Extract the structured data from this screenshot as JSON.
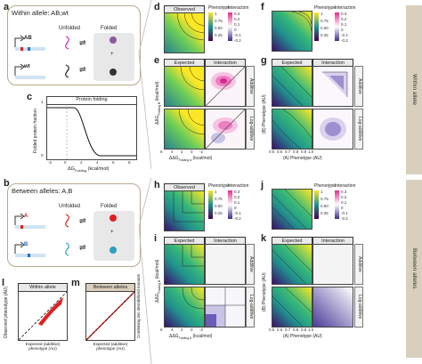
{
  "panel_letters": {
    "a": "a",
    "b": "b",
    "c": "c",
    "d": "d",
    "e": "e",
    "f": "f",
    "g": "g",
    "h": "h",
    "i": "i",
    "j": "j",
    "k": "k",
    "l": "l",
    "m": "m"
  },
  "panel_a": {
    "title": "Within allele: AB,wt",
    "col_unfolded": "Unfolded",
    "col_folded": "Folded",
    "ab": "AB",
    "wt": "wt",
    "plus": "+"
  },
  "panel_b": {
    "title": "Between alleles: A,B",
    "col_unfolded": "Unfolded",
    "col_folded": "Folded",
    "a": "A",
    "b": "B",
    "plus": "+"
  },
  "panel_c": {
    "title": "Protein folding",
    "ylabel": "Folded protein fraction",
    "xlabel": "ΔG",
    "xlabel_sub": "Folding",
    "xlabel_unit": " (kcal/mol)",
    "xticks": [
      "-2",
      "0",
      "2",
      "4",
      "6",
      "8"
    ],
    "yticks": [
      "0",
      "1"
    ]
  },
  "headers": {
    "observed": "Observed",
    "expected": "Expected",
    "interaction": "Interaction",
    "additive": "Additive",
    "log_additive": "Log-additive",
    "phenotype": "Phenotype",
    "interaction_legend": "Interaction"
  },
  "legend_d": {
    "pheno_ticks": [
      "1",
      "0.75",
      "0.50",
      "0.25"
    ],
    "inter_ticks": [
      "0.3",
      "0.2",
      "0.1",
      "0",
      "-0.1",
      "-0.2"
    ]
  },
  "legend_f": {
    "pheno_ticks": [
      "1",
      "0.75",
      "0.50",
      "0.25"
    ],
    "inter_ticks": [
      "0.3",
      "0.2",
      "0.1",
      "0",
      "-0.1",
      "-0.2"
    ]
  },
  "legend_h": {
    "pheno_ticks": [
      "1",
      "0.75",
      "0.50",
      "0.25"
    ],
    "inter_ticks": [
      "0.3",
      "0.2",
      "0.1",
      "0",
      "-0.1",
      "-0.2"
    ]
  },
  "legend_j": {
    "pheno_ticks": [
      "1",
      "0.75",
      "0.50",
      "0.25"
    ],
    "inter_ticks": [
      "0.3",
      "0.2",
      "0.1",
      "0",
      "-0.1",
      "-0.2"
    ]
  },
  "axes_d": {
    "ylabel": "ΔΔG",
    "ylabel_sub": "Folding B",
    "ylabel_unit": " (kcal/mol)",
    "xlabel": "ΔΔG",
    "xlabel_sub": "Folding A",
    "xlabel_unit": " (kcal/mol)",
    "ticks": [
      "6",
      "4",
      "2",
      "0",
      "-2"
    ]
  },
  "axes_h": {
    "ylabel": "ΔΔG",
    "ylabel_sub": "Folding B",
    "ylabel_unit": " (kcal/mol)",
    "xlabel": "ΔΔG",
    "xlabel_sub": "Folding A",
    "xlabel_unit": " (kcal/mol)",
    "ticks": [
      "6",
      "4",
      "2",
      "0",
      "-2"
    ]
  },
  "axes_f": {
    "ylabel": "(B) Phenotype (AU)",
    "xlabel": "(A) Phenotype (AU)",
    "ticks": [
      "0.5",
      "0.6",
      "0.7",
      "0.8",
      "0.9",
      "1.0"
    ]
  },
  "axes_j": {
    "ylabel": "(B) Phenotype (AU)",
    "xlabel": "(A) Phenotype (AU)",
    "ticks": [
      "0.5",
      "0.6",
      "0.7",
      "0.8",
      "0.9",
      "1.0"
    ]
  },
  "sidebars": {
    "within": "Within allele",
    "between": "Between alleles"
  },
  "panel_l": {
    "title": "Within allele",
    "xlabel": "Expected (additive) phenotype (AU)",
    "ylabel": "Observed phenotype (AU)"
  },
  "panel_m": {
    "title": "Between alleles",
    "ylabel": "Combining two destabilized mutants"
  },
  "colors": {
    "accent_box": "#b8a98a",
    "sidebar": "#d9cfbd",
    "red": "#e02020",
    "blue": "#1f6fd1",
    "purple": "#6a3d9a"
  }
}
